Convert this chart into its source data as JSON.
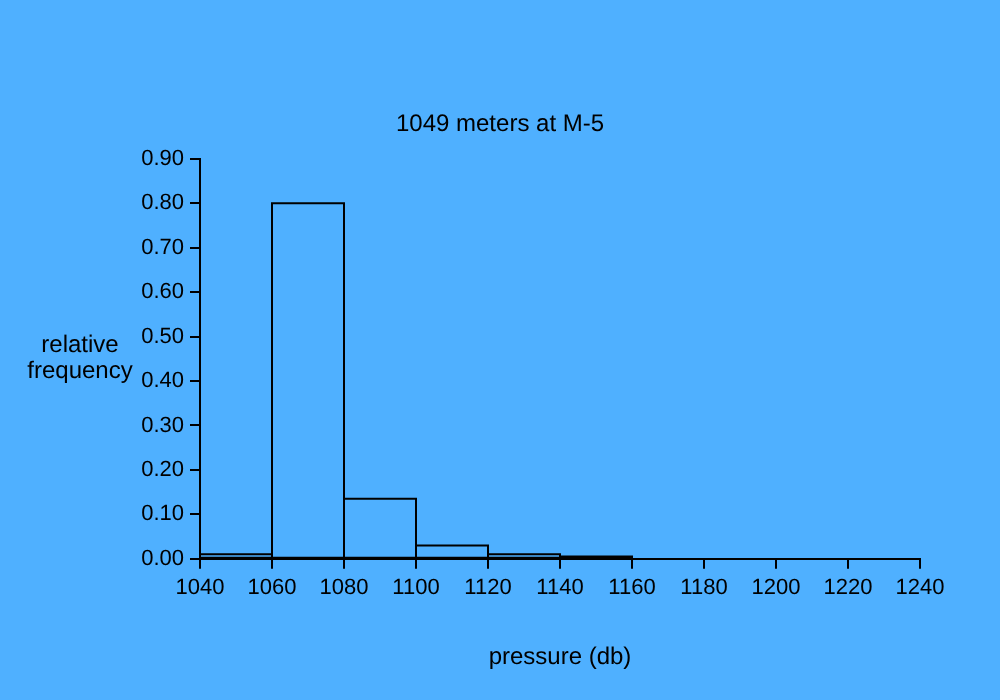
{
  "chart_data": {
    "type": "histogram",
    "title": "1049 meters at M-5",
    "xlabel": "pressure (db)",
    "ylabel": "relative frequency",
    "bins": [
      1040,
      1060,
      1080,
      1100,
      1120,
      1140,
      1160
    ],
    "values": [
      0.01,
      0.8,
      0.135,
      0.03,
      0.01,
      0.005
    ],
    "color": "#000000",
    "xlim": [
      1040,
      1240
    ],
    "xticks": [
      1040,
      1060,
      1080,
      1100,
      1120,
      1140,
      1160,
      1180,
      1200,
      1220,
      1240
    ],
    "ylim": [
      0,
      0.9
    ],
    "yticks": [
      {
        "value": 0,
        "label": "0.00"
      },
      {
        "value": 0.1,
        "label": "0.10"
      },
      {
        "value": 0.2,
        "label": "0.20"
      },
      {
        "value": 0.3,
        "label": "0.30"
      },
      {
        "value": 0.4,
        "label": "0.40"
      },
      {
        "value": 0.5,
        "label": "0.50"
      },
      {
        "value": 0.6,
        "label": "0.60"
      },
      {
        "value": 0.7,
        "label": "0.70"
      },
      {
        "value": 0.8,
        "label": "0.80"
      },
      {
        "value": 0.9,
        "label": "0.90"
      }
    ]
  }
}
